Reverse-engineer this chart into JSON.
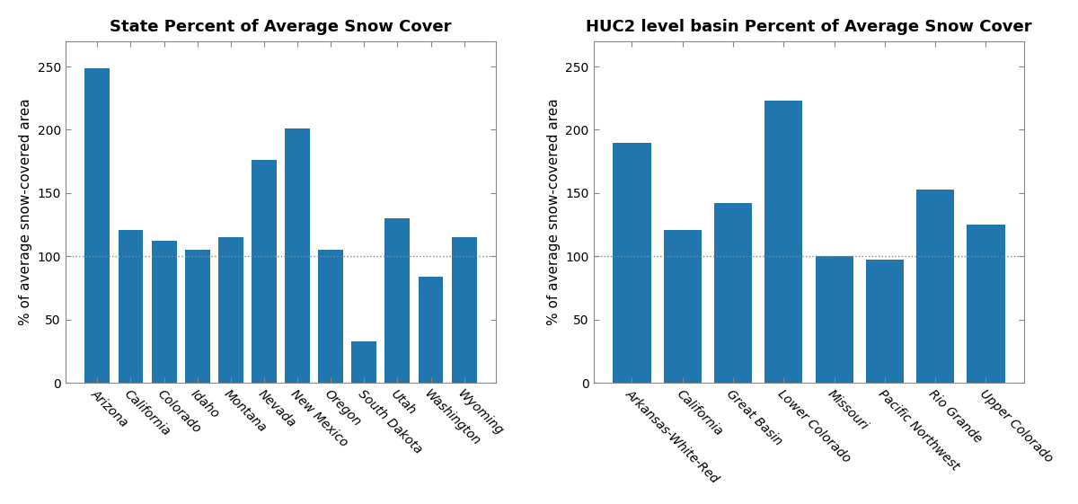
{
  "left_title": "State Percent of Average Snow Cover",
  "right_title": "HUC2 level basin Percent of Average Snow Cover",
  "ylabel": "% of average snow-covered area",
  "left_categories": [
    "Arizona",
    "California",
    "Colorado",
    "Idaho",
    "Montana",
    "Nevada",
    "New Mexico",
    "Oregon",
    "South Dakota",
    "Utah",
    "Washington",
    "Wyoming"
  ],
  "left_values": [
    249,
    121,
    112,
    105,
    115,
    176,
    201,
    105,
    33,
    130,
    84,
    115
  ],
  "right_categories": [
    "Arkansas-White-Red",
    "California",
    "Great Basin",
    "Lower Colorado",
    "Missouri",
    "Pacific Northwest",
    "Rio Grande",
    "Upper Colorado"
  ],
  "right_values": [
    190,
    121,
    142,
    223,
    100,
    97,
    153,
    125
  ],
  "bar_color": "#2176ae",
  "ref_line": 100,
  "ref_line_color": "#888888",
  "ylim": [
    0,
    270
  ],
  "yticks": [
    0,
    50,
    100,
    150,
    200,
    250
  ],
  "background_color": "#ffffff",
  "title_fontsize": 13,
  "tick_fontsize": 10,
  "label_fontsize": 11
}
